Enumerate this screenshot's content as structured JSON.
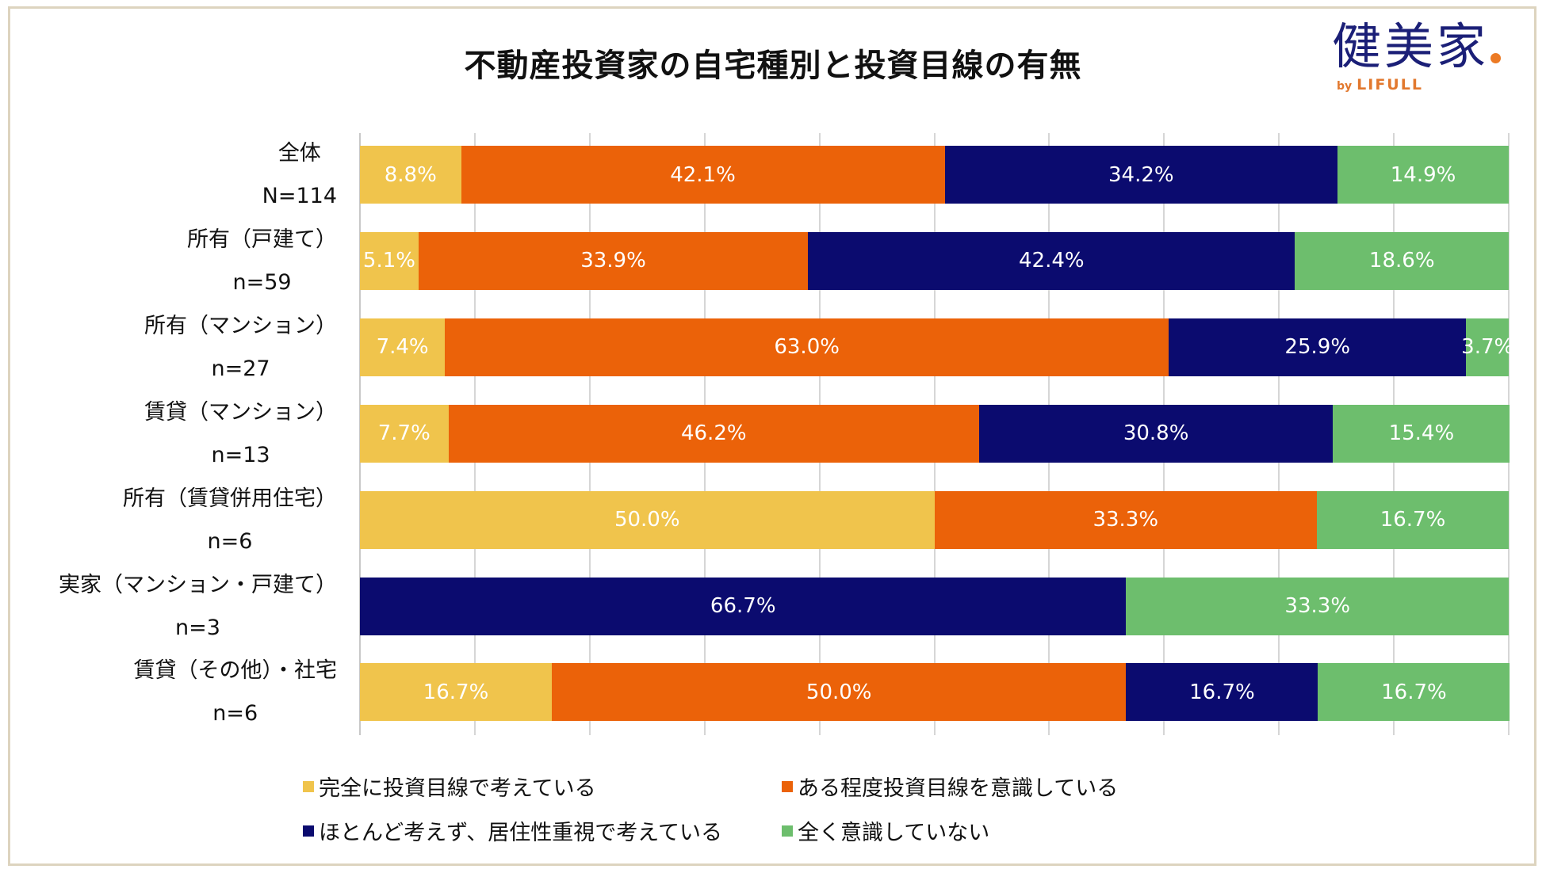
{
  "chart_data": {
    "type": "bar",
    "orientation": "horizontal-stacked-100",
    "title": "不動産投資家の自宅種別と投資目線の有無",
    "xlim": [
      0,
      100
    ],
    "grid": true,
    "legend_placement": "bottom",
    "categories": [
      {
        "name": "全体",
        "n": "N=114"
      },
      {
        "name": "所有（戸建て）",
        "n": "n=59"
      },
      {
        "name": "所有（マンション）",
        "n": "n=27"
      },
      {
        "name": "賃貸（マンション）",
        "n": "n=13"
      },
      {
        "name": "所有（賃貸併用住宅）",
        "n": "n=6"
      },
      {
        "name": "実家（マンション・戸建て）",
        "n": "n=3"
      },
      {
        "name": "賃貸（その他）・社宅",
        "n": "n=6"
      }
    ],
    "series": [
      {
        "name": "完全に投資目線で考えている",
        "color": "#F0C44C",
        "values": [
          8.8,
          5.1,
          7.4,
          7.7,
          50.0,
          0,
          16.7
        ]
      },
      {
        "name": "ある程度投資目線を意識している",
        "color": "#EB6209",
        "values": [
          42.1,
          33.9,
          63.0,
          46.2,
          33.3,
          0,
          50.0
        ]
      },
      {
        "name": "ほとんど考えず、居住性重視で考えている",
        "color": "#0B0B6F",
        "values": [
          34.2,
          42.4,
          25.9,
          30.8,
          0,
          66.7,
          16.7
        ]
      },
      {
        "name": "全く意識していない",
        "color": "#6DBE6D",
        "values": [
          14.9,
          18.6,
          3.7,
          15.4,
          16.7,
          33.3,
          16.7
        ]
      }
    ]
  },
  "logo": {
    "main": "健美家",
    "sub_by": "by",
    "sub_brand": "LIFULL"
  }
}
